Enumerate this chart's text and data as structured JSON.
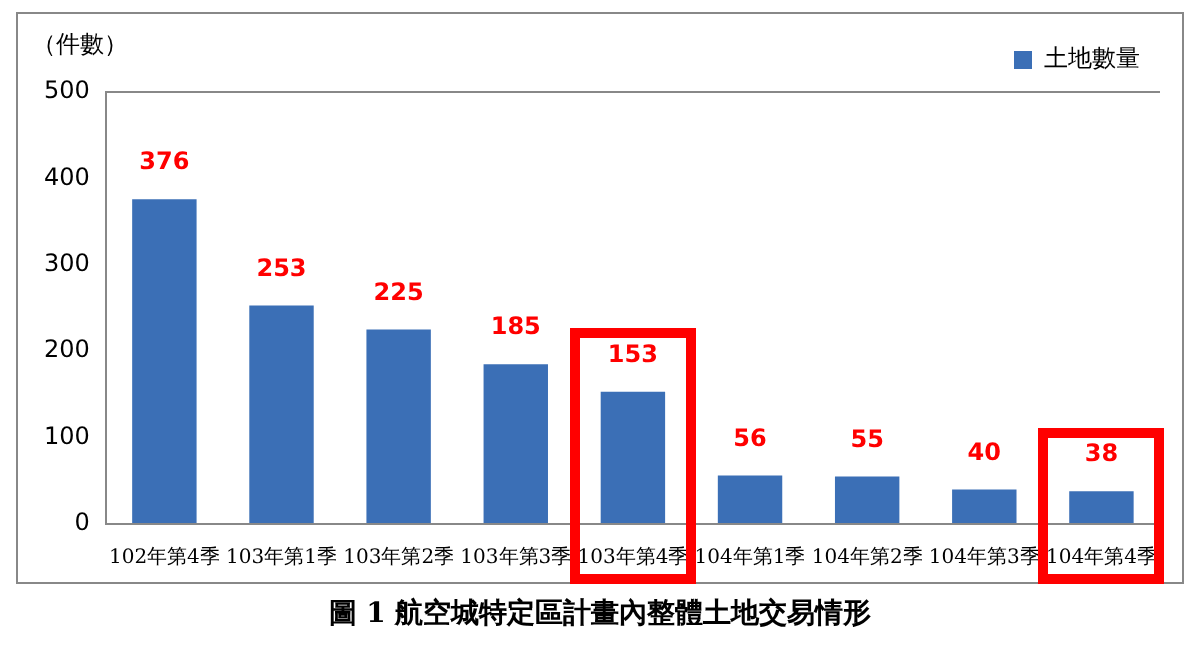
{
  "chart_data": {
    "type": "bar",
    "title": "圖 1 航空城特定區計畫內整體土地交易情形",
    "ylabel": "（件數）",
    "categories": [
      "102年第4季",
      "103年第1季",
      "103年第2季",
      "103年第3季",
      "103年第4季",
      "104年第1季",
      "104年第2季",
      "104年第3季",
      "104年第4季"
    ],
    "series": [
      {
        "name": "土地數量",
        "color": "#3b6fb6",
        "values": [
          376,
          253,
          225,
          185,
          153,
          56,
          55,
          40,
          38
        ]
      }
    ],
    "ylim": [
      0,
      500
    ],
    "yticks": [
      0,
      100,
      200,
      300,
      400,
      500
    ],
    "grid": false,
    "legend": "top right",
    "data_labels": true
  }
}
